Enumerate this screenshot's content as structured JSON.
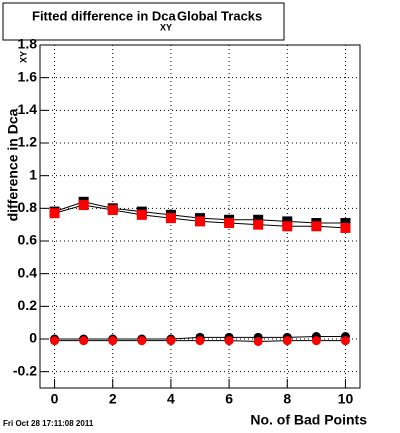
{
  "chart_data": {
    "type": "scatter",
    "title": "Fitted difference in Dca",
    "title_sub": "XY",
    "title_end": "Global Tracks",
    "y_label": "difference in Dca",
    "y_label_sub": "XY",
    "x_label": "No. of Bad Points",
    "timestamp": "Fri Oct 28 17:11:08 2011",
    "x": [
      0,
      1,
      2,
      3,
      4,
      5,
      6,
      7,
      8,
      9,
      10
    ],
    "series": [
      {
        "color": "#000000",
        "marker": "square",
        "values": [
          0.78,
          0.84,
          0.8,
          0.78,
          0.76,
          0.74,
          0.73,
          0.73,
          0.72,
          0.71,
          0.71
        ]
      },
      {
        "color": "#ff0000",
        "marker": "square",
        "values": [
          0.77,
          0.82,
          0.79,
          0.76,
          0.74,
          0.72,
          0.71,
          0.7,
          0.69,
          0.69,
          0.68
        ]
      },
      {
        "color": "#000000",
        "marker": "circle",
        "values": [
          0,
          0,
          0,
          0,
          0,
          0.01,
          0.01,
          0.01,
          0.01,
          0.015,
          0.015
        ]
      },
      {
        "color": "#ff0000",
        "marker": "circle",
        "values": [
          -0.01,
          -0.01,
          -0.01,
          -0.01,
          -0.01,
          -0.01,
          -0.01,
          -0.015,
          -0.01,
          -0.01,
          -0.01
        ]
      }
    ],
    "xlim": [
      -0.5,
      10.5
    ],
    "xticks": [
      0,
      2,
      4,
      6,
      8,
      10
    ],
    "ylim": [
      -0.3,
      1.8
    ],
    "yticks": [
      -0.2,
      0,
      0.2,
      0.4,
      0.6,
      0.8,
      1,
      1.2,
      1.4,
      1.6,
      1.8
    ],
    "grid": true
  }
}
